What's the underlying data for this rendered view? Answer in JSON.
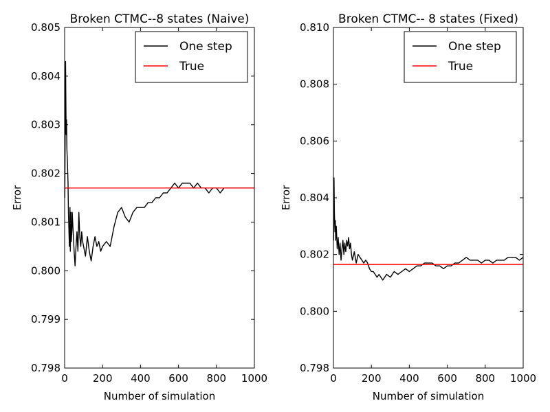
{
  "chart_data": [
    {
      "type": "line",
      "title": "Broken CTMC--8 states (Naive)",
      "xlabel": "Number of simulation",
      "ylabel": "Error",
      "xlim": [
        0,
        1000
      ],
      "ylim": [
        0.798,
        0.805
      ],
      "xticks": [
        0,
        200,
        400,
        600,
        800,
        1000
      ],
      "yticks": [
        0.798,
        0.799,
        0.8,
        0.801,
        0.802,
        0.803,
        0.804,
        0.805
      ],
      "ytick_labels": [
        "0.798",
        "0.799",
        "0.800",
        "0.801",
        "0.802",
        "0.803",
        "0.804",
        "0.805"
      ],
      "grid": false,
      "legend": "top-right",
      "series": [
        {
          "name": "One step",
          "color": "#000000",
          "x": [
            1,
            5,
            8,
            10,
            12,
            15,
            18,
            20,
            25,
            28,
            30,
            33,
            35,
            38,
            40,
            45,
            50,
            55,
            60,
            65,
            70,
            75,
            80,
            85,
            90,
            95,
            100,
            110,
            120,
            130,
            140,
            150,
            160,
            170,
            180,
            190,
            200,
            220,
            240,
            260,
            280,
            300,
            320,
            340,
            360,
            380,
            400,
            420,
            440,
            460,
            480,
            500,
            520,
            540,
            560,
            580,
            600,
            620,
            640,
            660,
            680,
            700,
            720,
            740,
            760,
            780,
            800,
            820,
            840,
            860,
            880,
            900,
            920,
            940,
            960,
            980,
            1000
          ],
          "values": [
            0.8015,
            0.8043,
            0.8028,
            0.8031,
            0.8025,
            0.8022,
            0.8018,
            0.8012,
            0.8005,
            0.8013,
            0.8004,
            0.8012,
            0.8006,
            0.8008,
            0.8012,
            0.8008,
            0.8004,
            0.8001,
            0.8005,
            0.8008,
            0.8004,
            0.8012,
            0.8007,
            0.8005,
            0.8008,
            0.8006,
            0.8005,
            0.8003,
            0.8007,
            0.8004,
            0.8002,
            0.8005,
            0.8007,
            0.8005,
            0.8006,
            0.8004,
            0.8005,
            0.8006,
            0.8005,
            0.8009,
            0.8012,
            0.8013,
            0.8011,
            0.801,
            0.8012,
            0.8013,
            0.8013,
            0.8013,
            0.8014,
            0.8014,
            0.8015,
            0.8015,
            0.8016,
            0.8016,
            0.8017,
            0.8018,
            0.8017,
            0.8018,
            0.8018,
            0.8018,
            0.8017,
            0.8018,
            0.8017,
            0.8017,
            0.8016,
            0.8017,
            0.8017,
            0.8016,
            0.8017,
            0.8017,
            0.8017,
            0.8017,
            0.8017,
            0.8017,
            0.8017,
            0.8017,
            0.8017
          ]
        },
        {
          "name": "True",
          "color": "#ff0000",
          "x": [
            0,
            1000
          ],
          "values": [
            0.8017,
            0.8017
          ]
        }
      ]
    },
    {
      "type": "line",
      "title": "Broken CTMC-- 8 states (Fixed)",
      "xlabel": "Number of simulation",
      "ylabel": "Error",
      "xlim": [
        0,
        1000
      ],
      "ylim": [
        0.798,
        0.81
      ],
      "xticks": [
        0,
        200,
        400,
        600,
        800,
        1000
      ],
      "yticks": [
        0.798,
        0.8,
        0.802,
        0.804,
        0.806,
        0.808,
        0.81
      ],
      "ytick_labels": [
        "0.798",
        "0.800",
        "0.802",
        "0.804",
        "0.806",
        "0.808",
        "0.810"
      ],
      "grid": false,
      "legend": "top-right",
      "series": [
        {
          "name": "One step",
          "color": "#000000",
          "x": [
            1,
            3,
            5,
            8,
            10,
            12,
            15,
            20,
            25,
            30,
            35,
            40,
            45,
            50,
            55,
            60,
            65,
            70,
            75,
            80,
            85,
            90,
            95,
            100,
            110,
            120,
            130,
            140,
            150,
            160,
            170,
            180,
            190,
            200,
            210,
            220,
            230,
            240,
            250,
            260,
            270,
            280,
            300,
            320,
            340,
            360,
            380,
            400,
            420,
            440,
            460,
            480,
            500,
            520,
            540,
            560,
            580,
            600,
            620,
            640,
            660,
            680,
            700,
            720,
            740,
            760,
            780,
            800,
            820,
            840,
            860,
            880,
            900,
            920,
            940,
            960,
            980,
            1000
          ],
          "values": [
            0.8025,
            0.8047,
            0.8035,
            0.8028,
            0.8032,
            0.8025,
            0.803,
            0.8022,
            0.8026,
            0.802,
            0.8024,
            0.8018,
            0.8022,
            0.8025,
            0.802,
            0.8024,
            0.8021,
            0.8025,
            0.8023,
            0.8026,
            0.8022,
            0.8024,
            0.802,
            0.8018,
            0.8021,
            0.8017,
            0.802,
            0.8019,
            0.8018,
            0.8017,
            0.8018,
            0.8017,
            0.8015,
            0.8014,
            0.8014,
            0.8013,
            0.8012,
            0.8013,
            0.8012,
            0.8011,
            0.8012,
            0.8013,
            0.8012,
            0.8014,
            0.8013,
            0.8014,
            0.8015,
            0.8014,
            0.8015,
            0.8016,
            0.8016,
            0.8017,
            0.8017,
            0.8017,
            0.8016,
            0.8016,
            0.8015,
            0.8016,
            0.8016,
            0.8017,
            0.8017,
            0.8018,
            0.8019,
            0.8018,
            0.8018,
            0.8018,
            0.8017,
            0.8018,
            0.8018,
            0.8017,
            0.8018,
            0.8018,
            0.8018,
            0.8019,
            0.8019,
            0.8019,
            0.8018,
            0.8019
          ]
        },
        {
          "name": "True",
          "color": "#ff0000",
          "x": [
            0,
            1000
          ],
          "values": [
            0.80165,
            0.80165
          ]
        }
      ]
    }
  ]
}
